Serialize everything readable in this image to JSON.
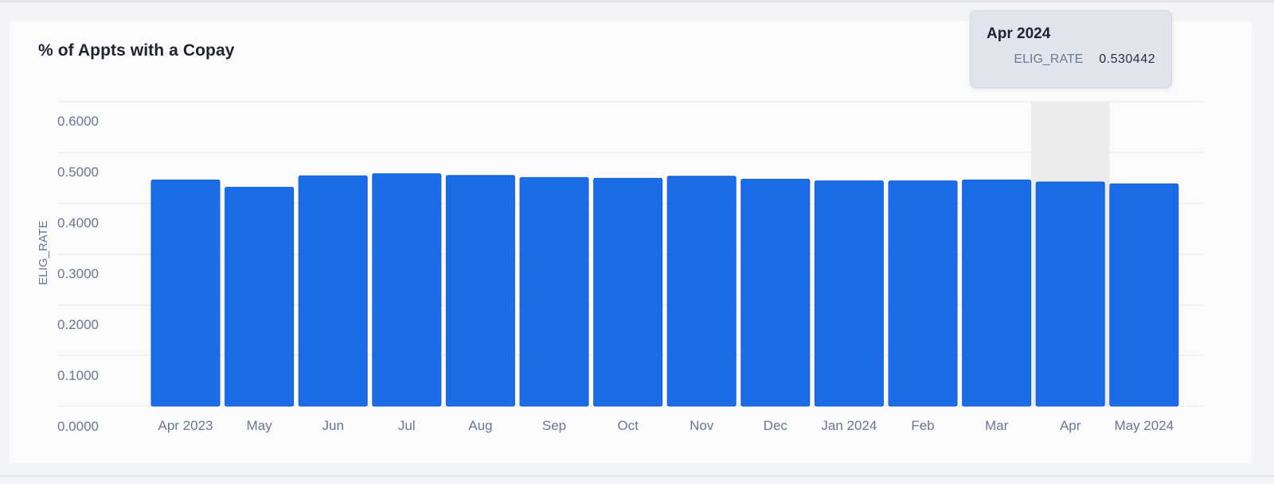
{
  "chart_data": {
    "type": "bar",
    "title": "% of Appts with a Copay",
    "xlabel": "",
    "ylabel": "ELIG_RATE",
    "ylim": [
      0,
      0.6
    ],
    "yticks": [
      "0.0000",
      "0.1000",
      "0.2000",
      "0.3000",
      "0.4000",
      "0.5000",
      "0.6000"
    ],
    "categories": [
      "Apr 2023",
      "May",
      "Jun",
      "Jul",
      "Aug",
      "Sep",
      "Oct",
      "Nov",
      "Dec",
      "Jan 2024",
      "Feb",
      "Mar",
      "Apr",
      "May 2024"
    ],
    "values": [
      0.535,
      0.518,
      0.545,
      0.55,
      0.546,
      0.541,
      0.539,
      0.544,
      0.537,
      0.533,
      0.533,
      0.535,
      0.530442,
      0.526
    ],
    "bar_color": "#1a6de6",
    "grid": true,
    "highlight_index": 12
  },
  "tooltip": {
    "title": "Apr 2024",
    "key": "ELIG_RATE",
    "value": "0.530442"
  }
}
